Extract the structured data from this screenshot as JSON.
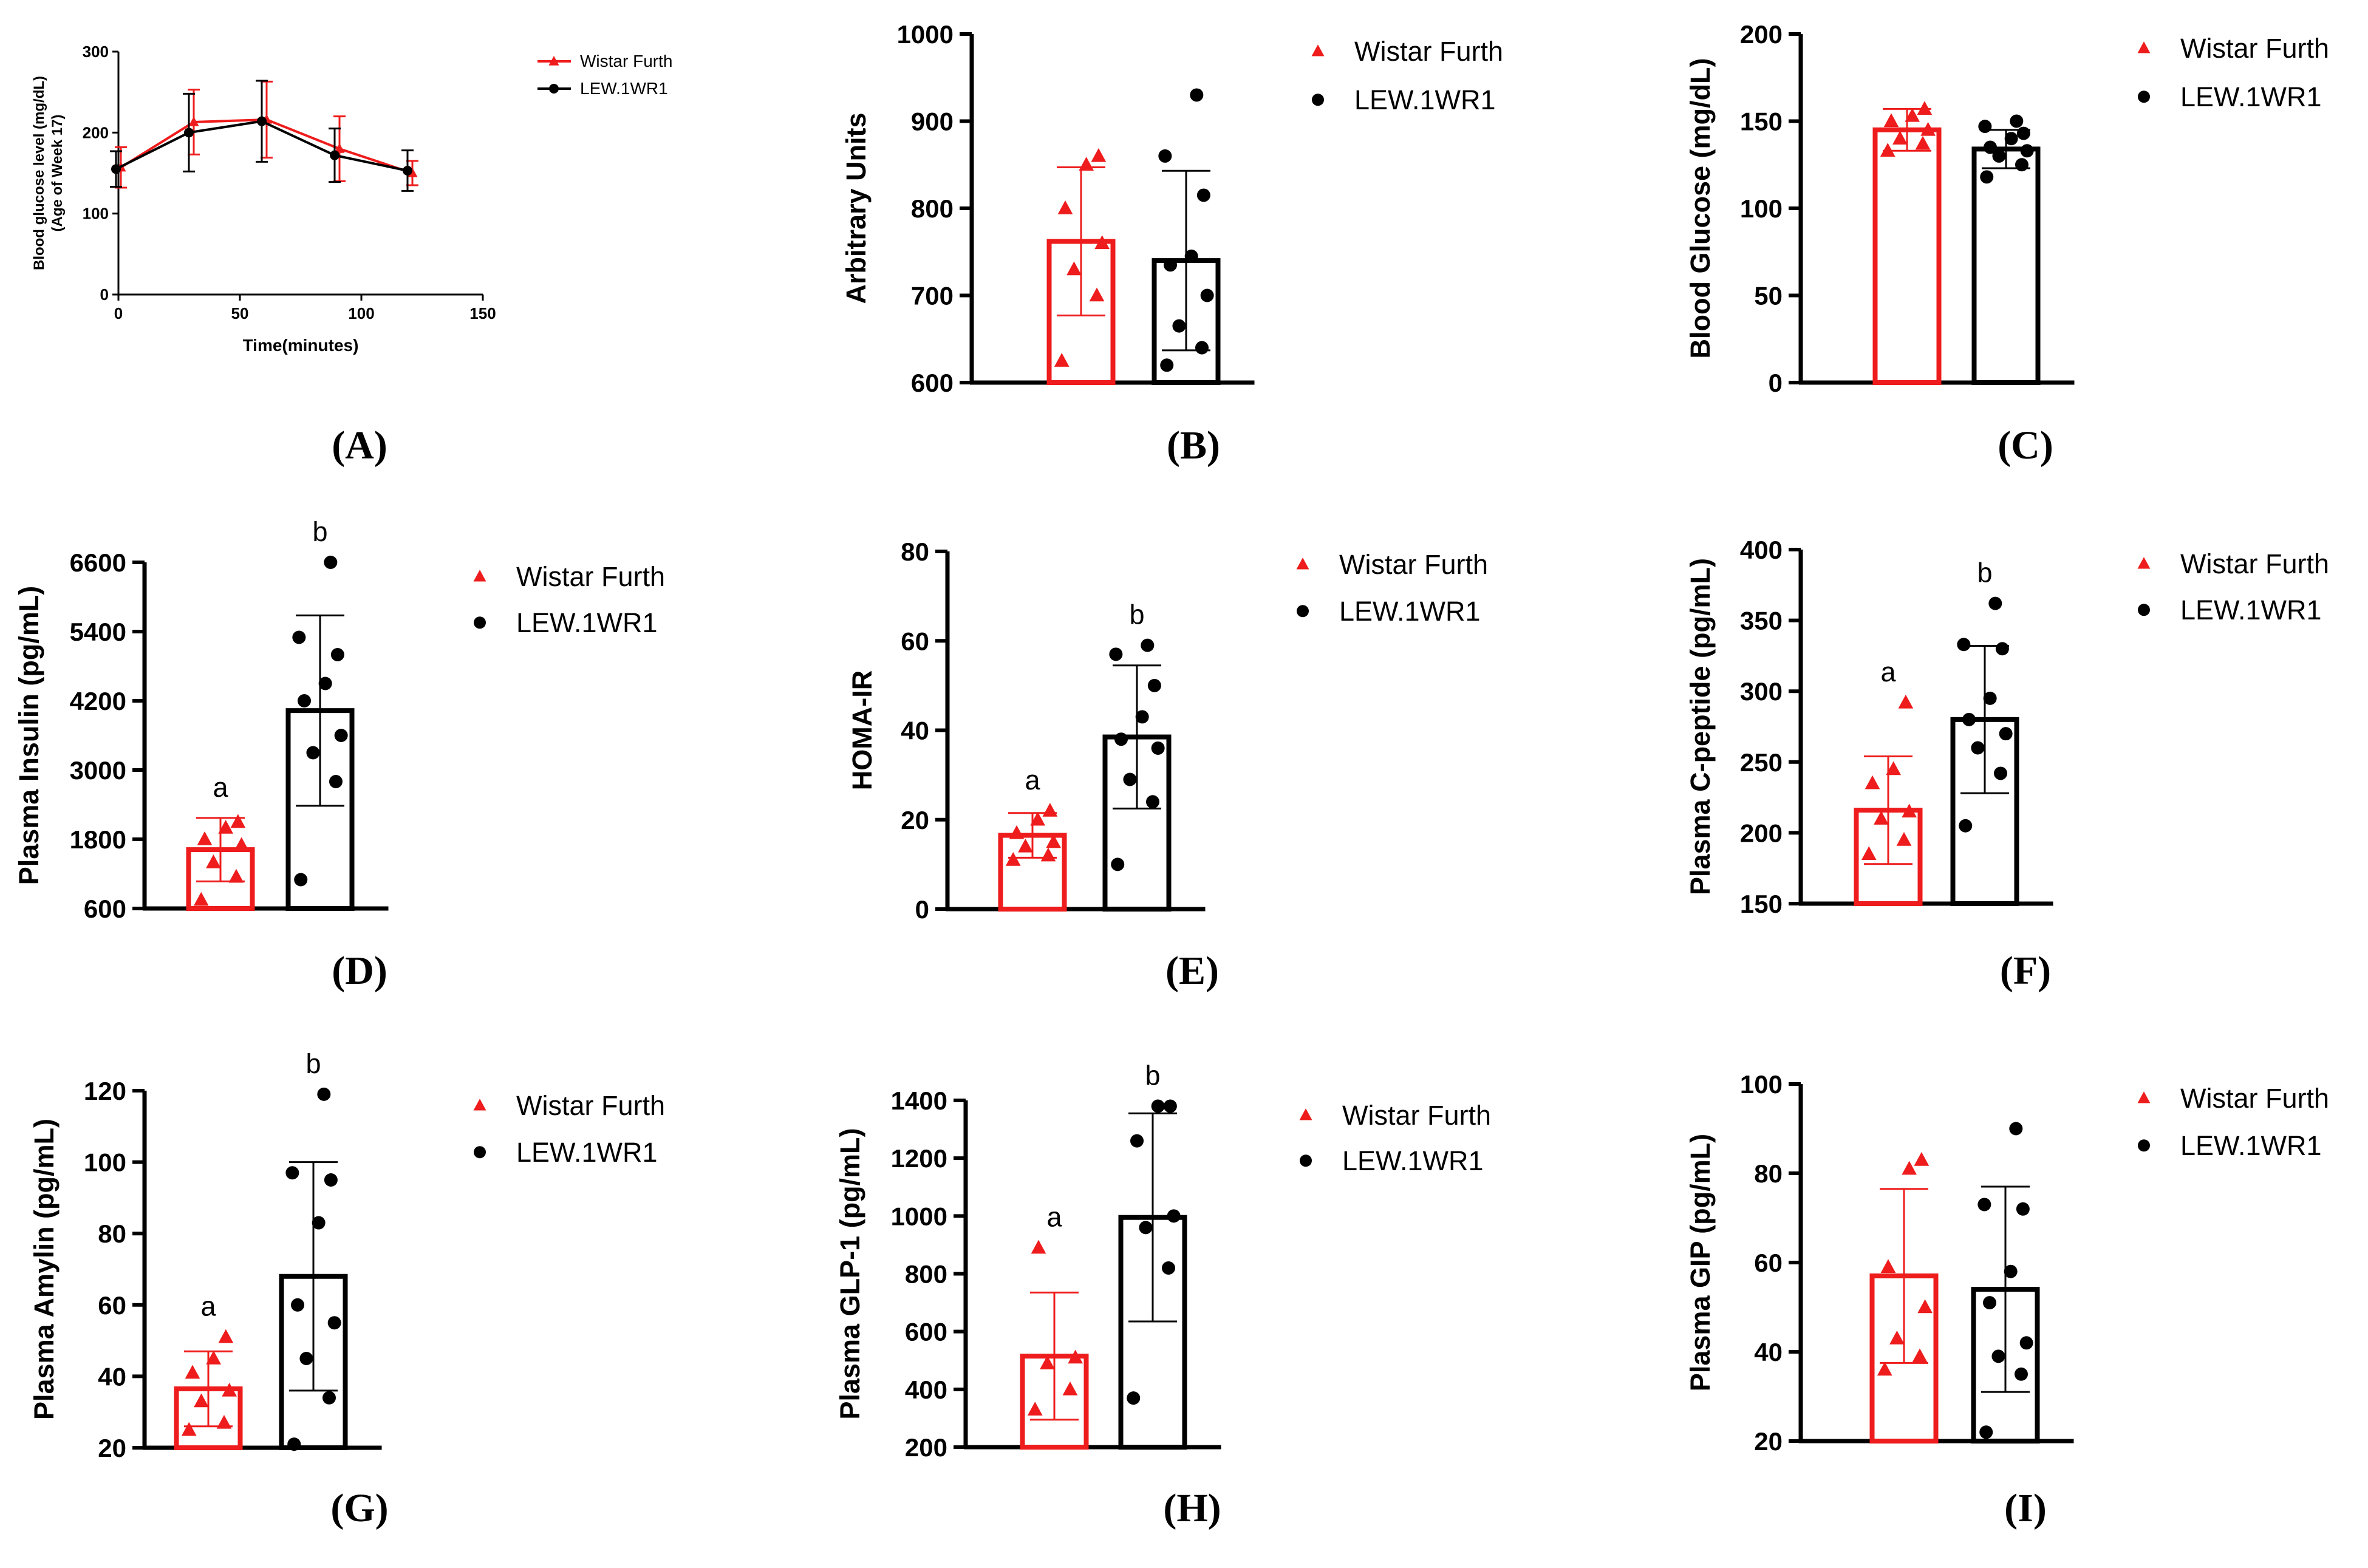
{
  "colors": {
    "wistar": "#ee1c1c",
    "lew": "#000000"
  },
  "legend": {
    "wistar": "Wistar Furth",
    "lew": "LEW.1WR1"
  },
  "chart_data": [
    {
      "id": "A",
      "type": "line",
      "label": "(A)",
      "title": "",
      "xlabel": "Time(minutes)",
      "ylabel": [
        "Blood glucose level (mg/dL)",
        "(Age of Week 17)"
      ],
      "xlim": [
        0,
        150
      ],
      "ylim": [
        0,
        300
      ],
      "xticks": [
        0,
        50,
        100,
        150
      ],
      "yticks": [
        0,
        100,
        200,
        300
      ],
      "series": [
        {
          "name": "Wistar Furth",
          "key": "wistar",
          "marker": "triangle",
          "x": [
            0,
            30,
            60,
            90,
            120
          ],
          "y": [
            157,
            213,
            216,
            180,
            150
          ],
          "err": [
            25,
            40,
            47,
            40,
            15
          ]
        },
        {
          "name": "LEW.1WR1",
          "key": "lew",
          "marker": "circle",
          "x": [
            0,
            30,
            60,
            90,
            120
          ],
          "y": [
            155,
            200,
            214,
            172,
            153
          ],
          "err": [
            22,
            48,
            50,
            33,
            25
          ]
        }
      ]
    },
    {
      "id": "B",
      "type": "bar",
      "label": "(B)",
      "ylabel": "Arbitrary Units",
      "ylim": [
        600,
        1000
      ],
      "yticks": [
        600,
        700,
        800,
        900,
        1000
      ],
      "groups": [
        {
          "key": "wistar",
          "mean": 762,
          "sd": 85,
          "points": [
            625,
            700,
            730,
            760,
            800,
            850,
            860
          ]
        },
        {
          "key": "lew",
          "mean": 740,
          "sd": 103,
          "points": [
            620,
            640,
            665,
            700,
            735,
            745,
            815,
            860,
            930
          ]
        }
      ]
    },
    {
      "id": "C",
      "type": "bar",
      "label": "(C)",
      "ylabel": "Blood Glucose (mg/dL)",
      "ylim": [
        0,
        200
      ],
      "yticks": [
        0,
        50,
        100,
        150,
        200
      ],
      "groups": [
        {
          "key": "wistar",
          "mean": 145,
          "sd": 12,
          "points": [
            133,
            137,
            140,
            145,
            150,
            153,
            157
          ]
        },
        {
          "key": "lew",
          "mean": 134,
          "sd": 11,
          "points": [
            118,
            125,
            130,
            133,
            135,
            140,
            143,
            147,
            150
          ]
        }
      ]
    },
    {
      "id": "D",
      "type": "bar",
      "label": "(D)",
      "ylabel": "Plasma Insulin (pg/mL)",
      "ylim": [
        600,
        6600
      ],
      "yticks": [
        600,
        1800,
        3000,
        4200,
        5400,
        6600
      ],
      "groups": [
        {
          "key": "wistar",
          "mean": 1620,
          "sd": 550,
          "points": [
            750,
            1150,
            1400,
            1700,
            1800,
            2000,
            2100
          ],
          "sig": "a"
        },
        {
          "key": "lew",
          "mean": 4030,
          "sd": 1650,
          "points": [
            1100,
            2800,
            3300,
            3600,
            4200,
            4500,
            5000,
            5300,
            6600
          ],
          "sig": "b"
        }
      ]
    },
    {
      "id": "E",
      "type": "bar",
      "label": "(E)",
      "ylabel": "HOMA-IR",
      "ylim": [
        0,
        80
      ],
      "yticks": [
        0,
        20,
        40,
        60,
        80
      ],
      "groups": [
        {
          "key": "wistar",
          "mean": 16.5,
          "sd": 5,
          "points": [
            11,
            12,
            14,
            15,
            17,
            20,
            22
          ],
          "sig": "a"
        },
        {
          "key": "lew",
          "mean": 38.5,
          "sd": 16,
          "points": [
            10,
            24,
            29,
            36,
            38,
            43,
            50,
            57,
            59
          ],
          "sig": "b"
        }
      ]
    },
    {
      "id": "F",
      "type": "bar",
      "label": "(F)",
      "ylabel": "Plasma C-peptide (pg/mL)",
      "ylim": [
        150,
        400
      ],
      "yticks": [
        150,
        200,
        250,
        300,
        350,
        400
      ],
      "groups": [
        {
          "key": "wistar",
          "mean": 216,
          "sd": 38,
          "points": [
            185,
            195,
            210,
            215,
            235,
            245,
            292
          ],
          "sig": "a"
        },
        {
          "key": "lew",
          "mean": 280,
          "sd": 52,
          "points": [
            205,
            242,
            260,
            270,
            280,
            295,
            330,
            333,
            362
          ],
          "sig": "b"
        }
      ]
    },
    {
      "id": "G",
      "type": "bar",
      "label": "(G)",
      "ylabel": "Plasma Amylin (pg/mL)",
      "ylim": [
        20,
        120
      ],
      "yticks": [
        20,
        40,
        60,
        80,
        100,
        120
      ],
      "groups": [
        {
          "key": "wistar",
          "mean": 36.5,
          "sd": 10.5,
          "points": [
            25,
            27,
            33,
            36,
            41,
            45,
            51
          ],
          "sig": "a"
        },
        {
          "key": "lew",
          "mean": 68,
          "sd": 32,
          "points": [
            21,
            34,
            45,
            55,
            60,
            83,
            95,
            97,
            119
          ],
          "sig": "b"
        }
      ]
    },
    {
      "id": "H",
      "type": "bar",
      "label": "(H)",
      "ylabel": "Plasma GLP-1 (pg/mL)",
      "ylim": [
        200,
        1400
      ],
      "yticks": [
        200,
        400,
        600,
        800,
        1000,
        1200,
        1400
      ],
      "groups": [
        {
          "key": "wistar",
          "mean": 515,
          "sd": 220,
          "points": [
            330,
            400,
            490,
            510,
            890
          ],
          "sig": "a"
        },
        {
          "key": "lew",
          "mean": 995,
          "sd": 360,
          "points": [
            370,
            820,
            960,
            1000,
            1260,
            1380,
            1380
          ],
          "sig": "b"
        }
      ]
    },
    {
      "id": "I",
      "type": "bar",
      "label": "(I)",
      "ylabel": "Plasma GIP (pg/mL)",
      "ylim": [
        20,
        100
      ],
      "yticks": [
        20,
        40,
        60,
        80,
        100
      ],
      "groups": [
        {
          "key": "wistar",
          "mean": 57,
          "sd": 19.5,
          "points": [
            36,
            39,
            43,
            50,
            59,
            81,
            83
          ]
        },
        {
          "key": "lew",
          "mean": 54,
          "sd": 23,
          "points": [
            22,
            35,
            39,
            42,
            51,
            58,
            72,
            73,
            90
          ]
        }
      ]
    }
  ]
}
